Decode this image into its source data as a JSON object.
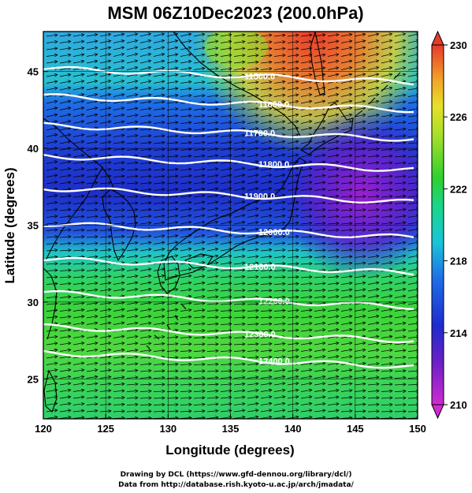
{
  "title": "MSM 06Z10Dec2023 (200.0hPa)",
  "x_axis": {
    "label": "Longitude (degrees)",
    "range": [
      120,
      150
    ],
    "ticks": [
      "120",
      "125",
      "130",
      "135",
      "140",
      "145",
      "150"
    ]
  },
  "y_axis": {
    "label": "Latitude  (degrees)",
    "range": [
      22.4,
      47.6
    ],
    "ticks": [
      "25",
      "30",
      "35",
      "40",
      "45"
    ]
  },
  "colorbar": {
    "range": [
      210,
      230
    ],
    "ticks": [
      "230",
      "226",
      "222",
      "218",
      "214",
      "210"
    ]
  },
  "contours": [
    {
      "label": "11500.0",
      "lat": 45.0
    },
    {
      "label": "11600.0",
      "lat": 43.2
    },
    {
      "label": "11700.0",
      "lat": 41.3
    },
    {
      "label": "11800.0",
      "lat": 39.3
    },
    {
      "label": "11900.0",
      "lat": 37.2
    },
    {
      "label": "12000.0",
      "lat": 34.9
    },
    {
      "label": "12100.0",
      "lat": 32.6
    },
    {
      "label": "12200.0",
      "lat": 30.4
    },
    {
      "label": "12300.0",
      "lat": 28.2
    },
    {
      "label": "12400.0",
      "lat": 26.5
    }
  ],
  "credits": [
    "Drawing by DCL (https://www.gfd-dennou.org/library/dcl/)",
    "Data from http://database.rish.kyoto-u.ac.jp/arch/jmadata/"
  ]
}
